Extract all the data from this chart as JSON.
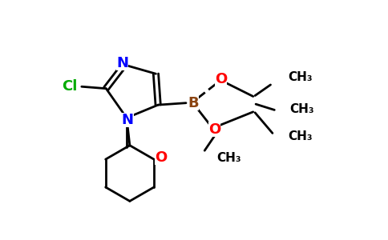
{
  "background_color": "#ffffff",
  "bond_color": "#000000",
  "cl_color": "#00aa00",
  "n_color": "#0000ff",
  "o_color": "#ff0000",
  "b_color": "#8b4513",
  "ch3_color": "#000000",
  "figsize": [
    4.84,
    3.0
  ],
  "dpi": 100,
  "xlim": [
    0,
    10
  ],
  "ylim": [
    0,
    6.2
  ]
}
